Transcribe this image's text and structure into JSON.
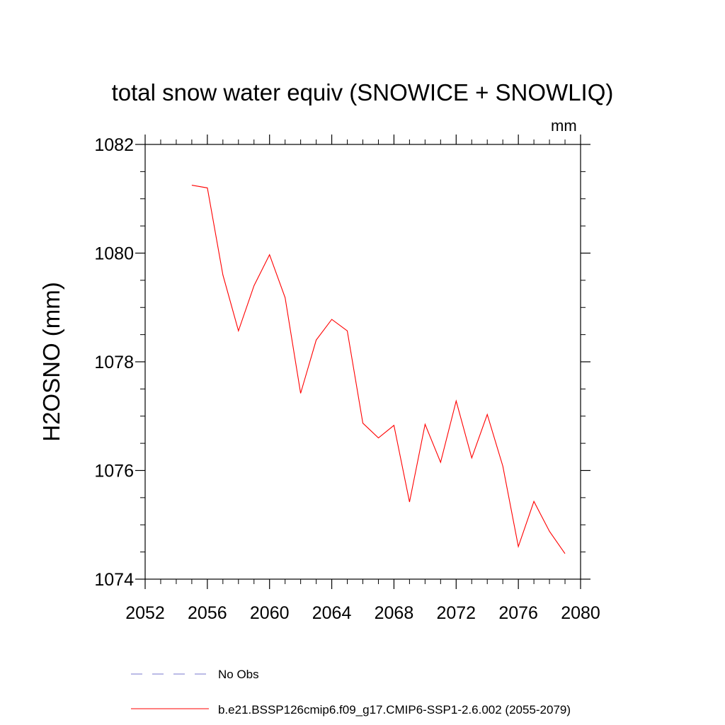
{
  "chart_data": {
    "type": "line",
    "title": "total snow water equiv (SNOWICE + SNOWLIQ)",
    "units": "mm",
    "xlabel": "",
    "ylabel": "H2OSNO  (mm)",
    "xlim": [
      2052,
      2080
    ],
    "ylim": [
      1074,
      1082
    ],
    "x_ticks": [
      2052,
      2056,
      2060,
      2064,
      2068,
      2072,
      2076,
      2080
    ],
    "y_ticks": [
      1074,
      1076,
      1078,
      1080,
      1082
    ],
    "series": [
      {
        "name": "b.e21.BSSP126cmip6.f09_g17.CMIP6-SSP1-2.6.002 (2055-2079)",
        "color": "#ff0000",
        "style": "solid",
        "x": [
          2055,
          2056,
          2057,
          2058,
          2059,
          2060,
          2061,
          2062,
          2063,
          2064,
          2065,
          2066,
          2067,
          2068,
          2069,
          2070,
          2071,
          2072,
          2073,
          2074,
          2075,
          2076,
          2077,
          2078,
          2079
        ],
        "y": [
          1081.25,
          1081.2,
          1079.6,
          1078.57,
          1079.4,
          1079.97,
          1079.18,
          1077.42,
          1078.4,
          1078.78,
          1078.57,
          1076.87,
          1076.6,
          1076.83,
          1075.42,
          1076.85,
          1076.15,
          1077.28,
          1076.23,
          1077.03,
          1076.08,
          1074.6,
          1075.43,
          1074.88,
          1074.47
        ]
      }
    ],
    "legend": [
      {
        "label": "No Obs",
        "color": "#7777cc",
        "style": "dashed"
      },
      {
        "label": "b.e21.BSSP126cmip6.f09_g17.CMIP6-SSP1-2.6.002 (2055-2079)",
        "color": "#ff0000",
        "style": "solid"
      }
    ]
  }
}
